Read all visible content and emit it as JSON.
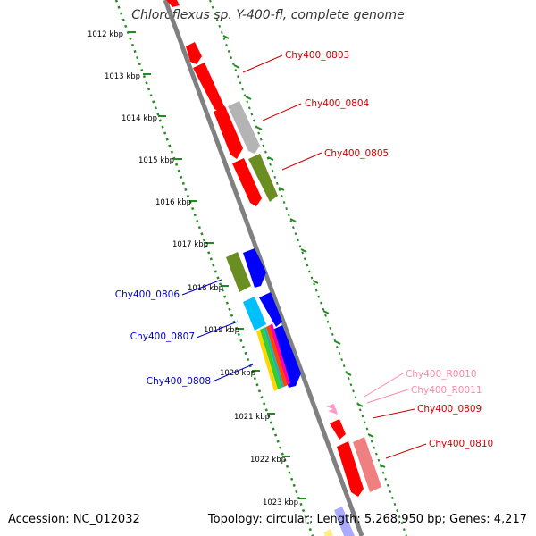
{
  "title": "Chloroflexus sp. Y-400-fl, complete genome",
  "footer": {
    "accession": "Accession: NC_012032",
    "summary": "Topology: circular; Length: 5,268,950 bp; Genes: 4,217"
  },
  "ruler_labels": [
    "1012 kbp",
    "1013 kbp",
    "1014 kbp",
    "1015 kbp",
    "1016 kbp",
    "1017 kbp",
    "1018 kbp",
    "1019 kbp",
    "1020 kbp",
    "1021 kbp",
    "1022 kbp",
    "1023 kbp"
  ],
  "gene_labels": {
    "g0803": "Chy400_0803",
    "g0804": "Chy400_0804",
    "g0805": "Chy400_0805",
    "g0806": "Chy400_0806",
    "g0807": "Chy400_0807",
    "g0808": "Chy400_0808",
    "r0010": "Chy400_R0010",
    "r0011": "Chy400_R0011",
    "g0809": "Chy400_0809",
    "g0810": "Chy400_0810"
  },
  "colors": {
    "backbone": "#808080",
    "ruler": "#228b22",
    "gene_red": "#ff0000",
    "gene_gray": "#b4b4b4",
    "gene_olive": "#6b8e23",
    "gene_blue": "#0000ff",
    "gene_cyan": "#00bfff",
    "gene_pink": "#f08080",
    "rna_pink": "#ff99cc",
    "label_red": "#cc0000",
    "label_blue": "#0000cc",
    "label_pink": "#ff88aa"
  }
}
